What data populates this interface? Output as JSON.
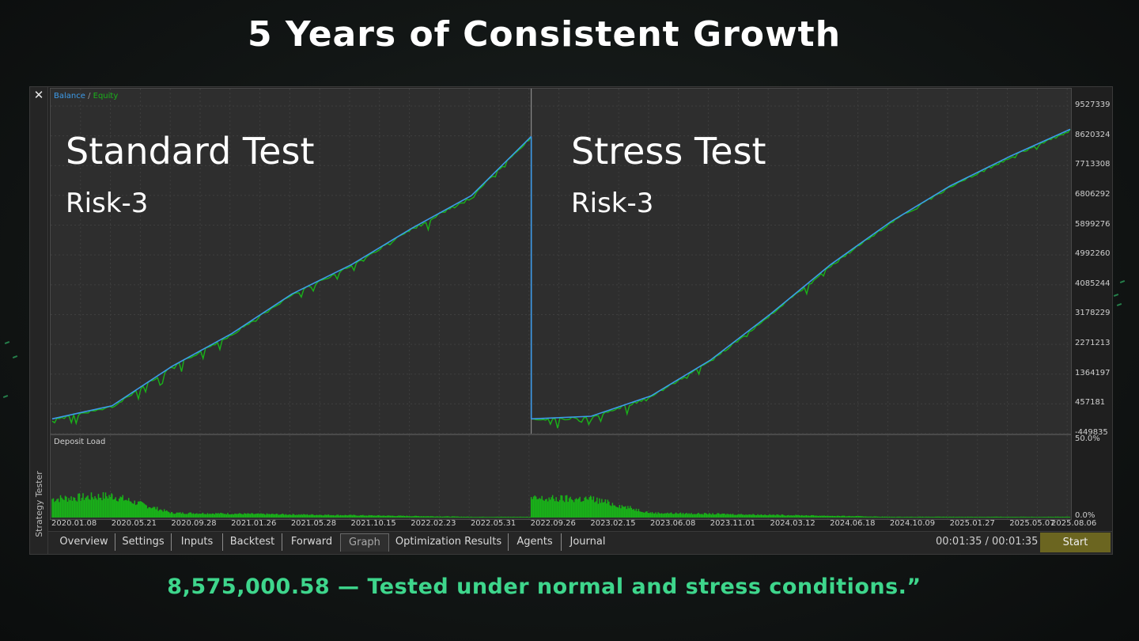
{
  "headline": "5 Years of Consistent Growth",
  "footer": "8,575,000.58 — Tested under normal and stress conditions.”",
  "window": {
    "side_label": "Strategy Tester",
    "legend": {
      "balance": "Balance",
      "sep": " / ",
      "equity": "Equity"
    },
    "deposit_load_label": "Deposit Load",
    "overlay_left": {
      "title": "Standard Test",
      "subtitle": "Risk-3"
    },
    "overlay_right": {
      "title": "Stress Test",
      "subtitle": "Risk-3"
    },
    "y_ticks": [
      "9527339",
      "8620324",
      "7713308",
      "6806292",
      "5899276",
      "4992260",
      "4085244",
      "3178229",
      "2271213",
      "1364197",
      "457181",
      "-449835"
    ],
    "load_ticks": [
      "50.0%",
      "0.0%"
    ],
    "x_ticks": [
      "2020.01.08",
      "2020.05.21",
      "2020.09.28",
      "2021.01.26",
      "2021.05.28",
      "2021.10.15",
      "2022.02.23",
      "2022.05.31",
      "2022.09.26",
      "2023.02.15",
      "2023.06.08",
      "2023.11.01",
      "2024.03.12",
      "2024.06.18",
      "2024.10.09",
      "2025.01.27",
      "2025.05.07",
      "2025.08.06"
    ],
    "tabs": [
      "Overview",
      "Settings",
      "Inputs",
      "Backtest",
      "Forward",
      "Graph",
      "Optimization Results",
      "Agents",
      "Journal"
    ],
    "active_tab": "Graph",
    "timer": "00:01:35 / 00:01:35",
    "start_label": "Start"
  },
  "colors": {
    "balance": "#3d9be9",
    "equity": "#19b219",
    "footer": "#3ed68c",
    "start": "#6b6520"
  },
  "chart_data": [
    {
      "type": "line",
      "title": "Standard Test",
      "subtitle": "Risk-3",
      "series": [
        {
          "name": "Balance",
          "x": [
            "2020.01.08",
            "2020.05.21",
            "2020.09.28",
            "2021.01.26",
            "2021.05.28",
            "2021.10.15",
            "2022.02.23",
            "2022.05.31",
            "2022.09.26"
          ],
          "values": [
            0,
            400000,
            1600000,
            2600000,
            3800000,
            4700000,
            5800000,
            6800000,
            8600000
          ]
        }
      ],
      "ylim": [
        -449835,
        9527339
      ]
    },
    {
      "type": "line",
      "title": "Stress Test",
      "subtitle": "Risk-3",
      "series": [
        {
          "name": "Balance",
          "x": [
            "2022.09.26",
            "2023.02.15",
            "2023.06.08",
            "2023.11.01",
            "2024.03.12",
            "2024.06.18",
            "2024.10.09",
            "2025.01.27",
            "2025.05.07",
            "2025.08.06"
          ],
          "values": [
            0,
            80000,
            700000,
            1800000,
            3200000,
            4700000,
            6000000,
            7100000,
            8000000,
            8820000
          ]
        }
      ],
      "ylim": [
        -449835,
        9527339
      ]
    },
    {
      "type": "bar",
      "title": "Deposit Load",
      "ylim": [
        0,
        50
      ],
      "segments": [
        {
          "x": [
            "2020.01.08",
            "2020.05.21",
            "2020.09.28",
            "2022.05.31",
            "2022.09.26"
          ],
          "values": [
            12,
            14,
            3,
            0.5,
            0.5
          ]
        },
        {
          "x": [
            "2022.09.26",
            "2023.02.15",
            "2023.06.08",
            "2024.10.09",
            "2025.08.06"
          ],
          "values": [
            12,
            12,
            3,
            0.5,
            0.5
          ]
        }
      ]
    }
  ]
}
